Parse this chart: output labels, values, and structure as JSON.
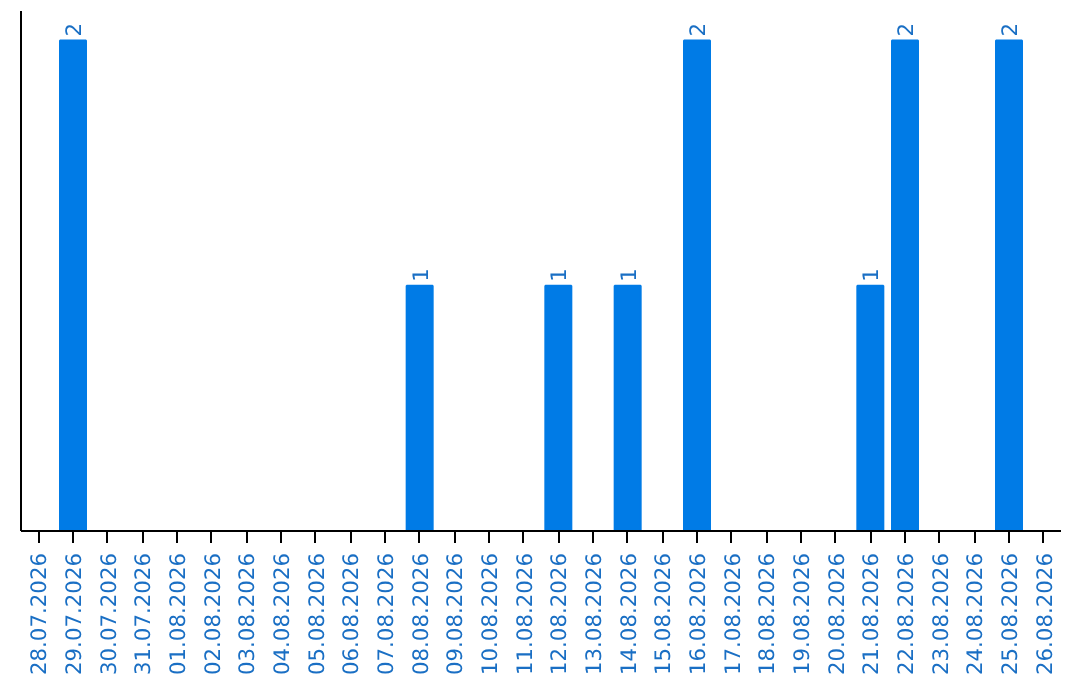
{
  "chart_data": {
    "type": "bar",
    "categories": [
      "28.07.2026",
      "29.07.2026",
      "30.07.2026",
      "31.07.2026",
      "01.08.2026",
      "02.08.2026",
      "03.08.2026",
      "04.08.2026",
      "05.08.2026",
      "06.08.2026",
      "07.08.2026",
      "08.08.2026",
      "09.08.2026",
      "10.08.2026",
      "11.08.2026",
      "12.08.2026",
      "13.08.2026",
      "14.08.2026",
      "15.08.2026",
      "16.08.2026",
      "17.08.2026",
      "18.08.2026",
      "19.08.2026",
      "20.08.2026",
      "21.08.2026",
      "22.08.2026",
      "23.08.2026",
      "24.08.2026",
      "25.08.2026",
      "26.08.2026"
    ],
    "values": [
      0,
      2,
      0,
      0,
      0,
      0,
      0,
      0,
      0,
      0,
      0,
      1,
      0,
      0,
      0,
      1,
      0,
      1,
      0,
      2,
      0,
      0,
      0,
      0,
      1,
      2,
      0,
      0,
      2,
      0
    ],
    "color": "#007be6",
    "value_labels": [
      null,
      "2",
      null,
      null,
      null,
      null,
      null,
      null,
      null,
      null,
      null,
      "1",
      null,
      null,
      null,
      "1",
      null,
      "1",
      null,
      "2",
      null,
      null,
      null,
      null,
      "1",
      "2",
      null,
      null,
      "2",
      null
    ],
    "tick_labels": "x",
    "grid": false
  }
}
